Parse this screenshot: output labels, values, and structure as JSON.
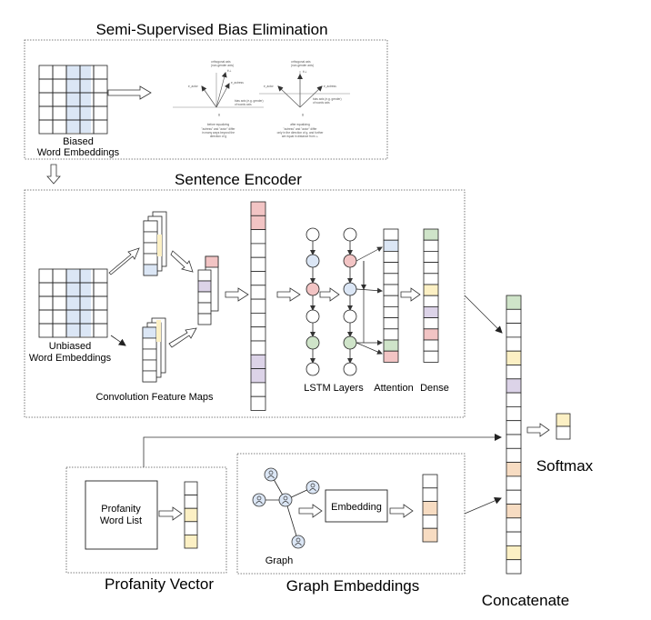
{
  "colors": {
    "blue": "#dbe6f5",
    "pink": "#f2c4c4",
    "green": "#cfe4c9",
    "yellow": "#fcf0c4",
    "purple": "#dcd3e8",
    "peach": "#f7dcc2",
    "line": "#222222",
    "dotted": "#555555"
  },
  "sections": {
    "bias_title": "Semi-Supervised Bias Elimination",
    "encoder_title": "Sentence Encoder",
    "profanity_title": "Profanity Vector",
    "graph_title": "Graph Embeddings",
    "concatenate": "Concatenate",
    "softmax": "Softmax"
  },
  "bias": {
    "biased_label_1": "Biased",
    "biased_label_2": "Word Embeddings",
    "plot_before": {
      "caption_title": "before equalizing",
      "caption_lines": [
        "\"actress\" and \"actor\" differ",
        "in many ways beyond the",
        "direction of g"
      ],
      "axis_top": [
        "orthogonal axis",
        "(non-gender axis)"
      ],
      "axis_right": [
        "bias axis (e.g. gender)",
        "of words axis"
      ],
      "label_g": "g",
      "label_actor": "e_actor",
      "label_actress": "e_actress",
      "label_perp": "ē⊥"
    },
    "plot_after": {
      "caption_title": "after equalizing",
      "caption_lines": [
        "\"actress\" and \"actor\" differ",
        "only in the direction of g, and further",
        "are equal in distance from ⊥"
      ],
      "axis_top": [
        "orthogonal axis",
        "(non-gender axis)"
      ],
      "axis_right": [
        "bias axis (e.g. gender)",
        "of words axis"
      ],
      "label_g": "g",
      "label_actor": "e_actor",
      "label_actress": "e_actress",
      "label_perp": "ē⊥"
    }
  },
  "encoder": {
    "unbiased_label_1": "Unbiased",
    "unbiased_label_2": "Word Embeddings",
    "conv_label": "Convolution Feature Maps",
    "lstm_label": "LSTM Layers",
    "attention_label": "Attention",
    "dense_label": "Dense"
  },
  "profanity": {
    "box_line_1": "Profanity",
    "box_line_2": "Word List"
  },
  "graph": {
    "embedding_label": "Embedding",
    "graph_label": "Graph"
  }
}
